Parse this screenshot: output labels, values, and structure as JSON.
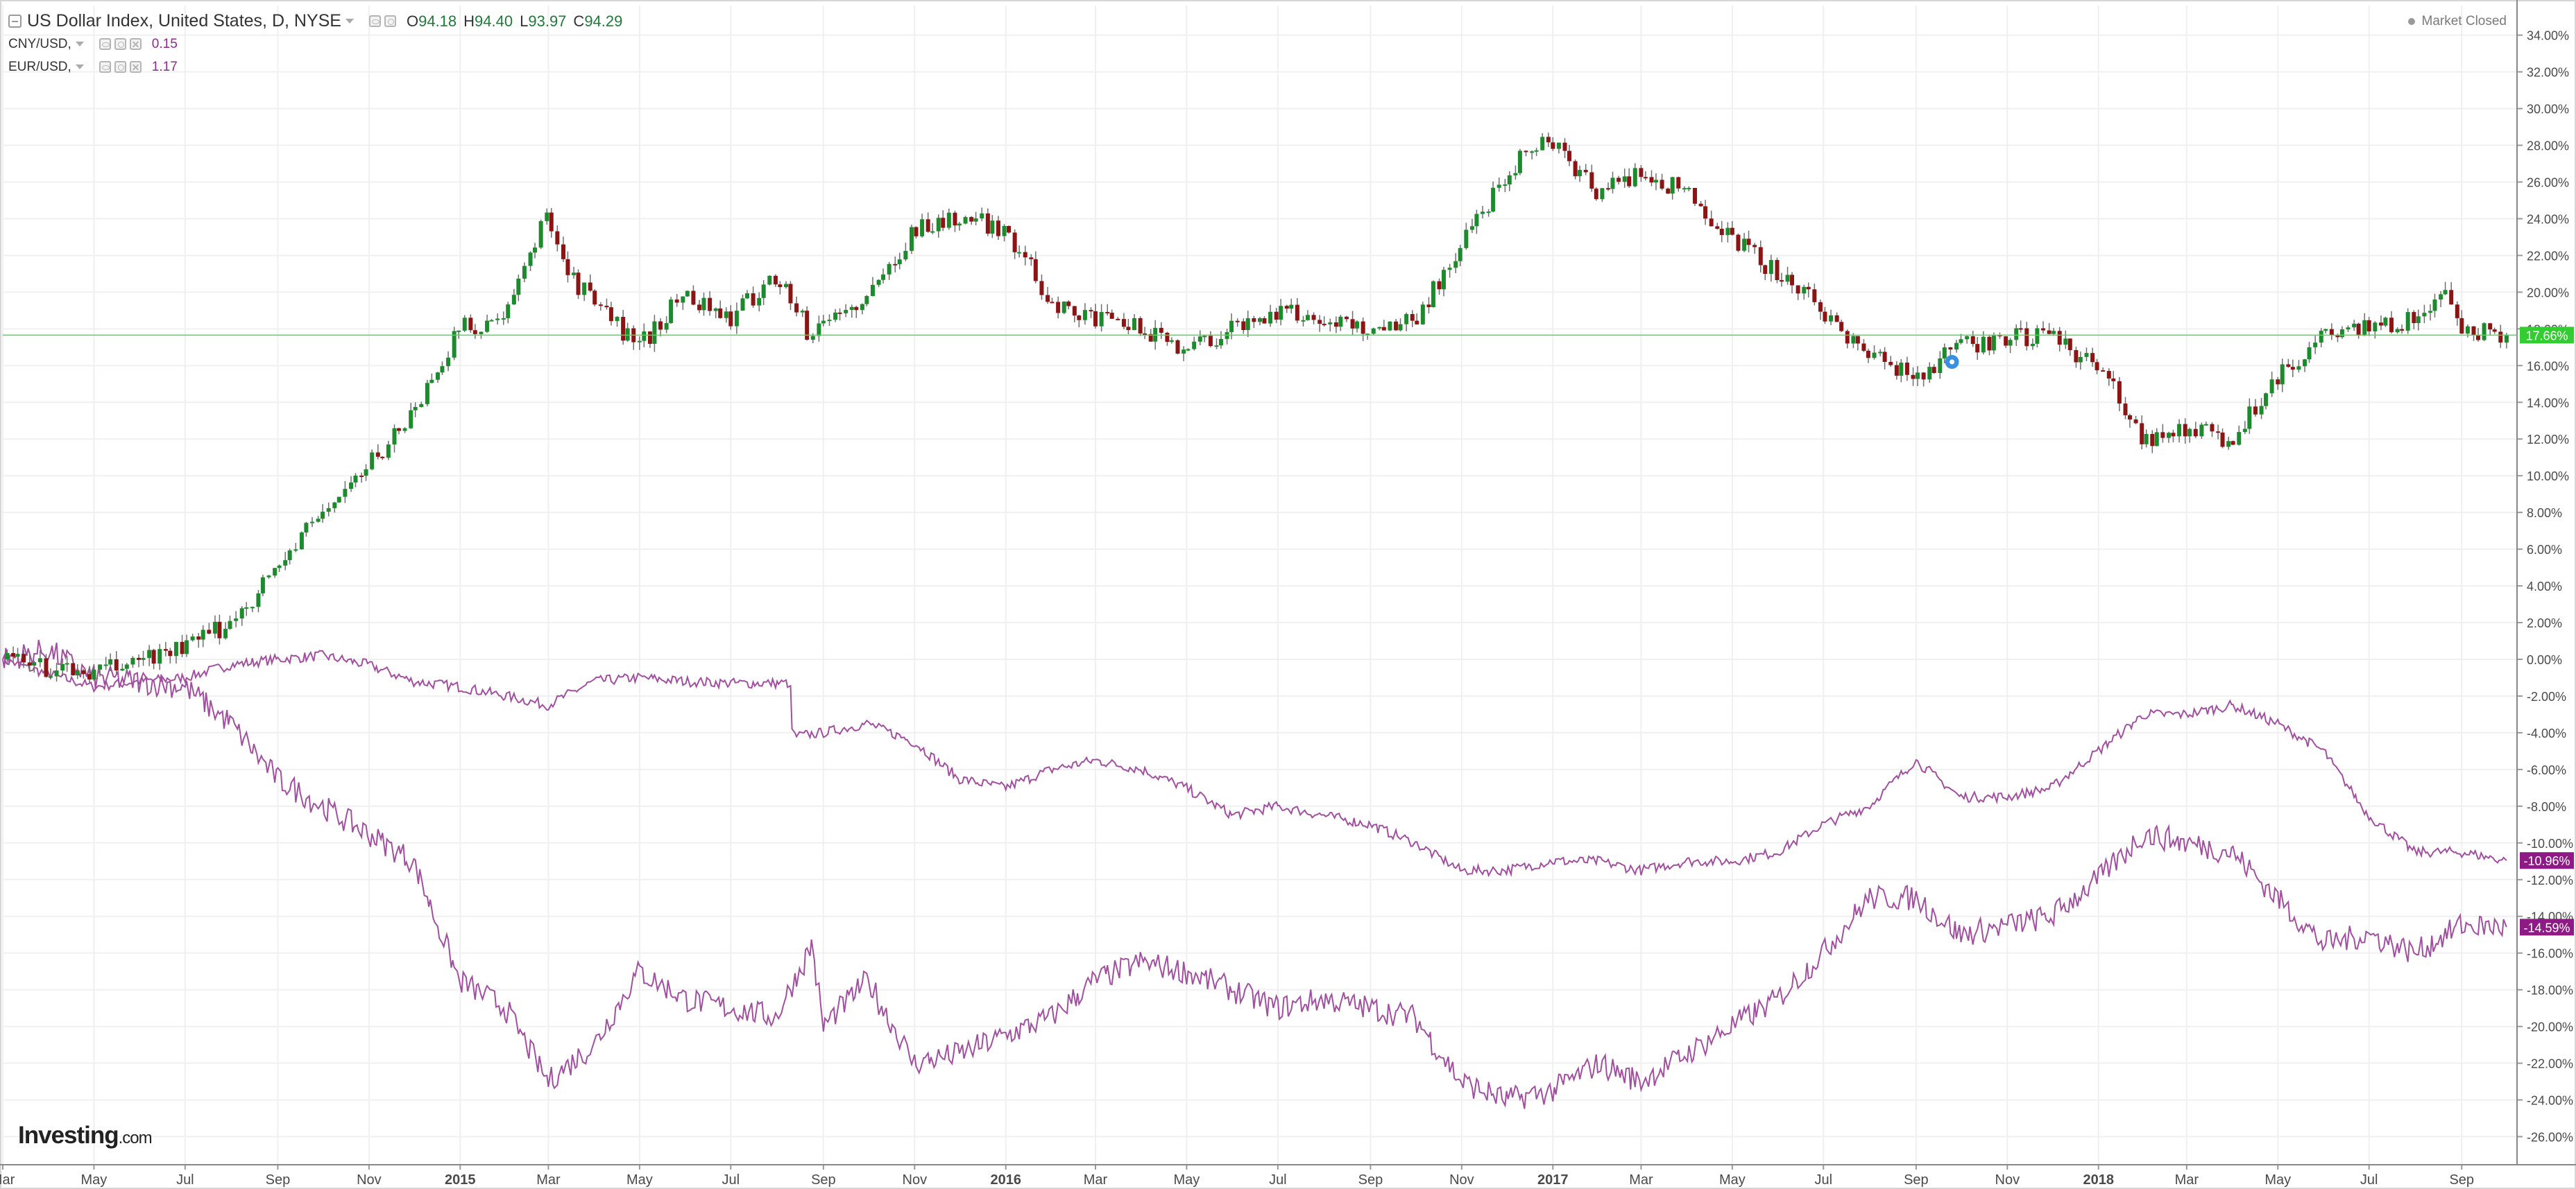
{
  "header": {
    "title": "US Dollar Index, United States, D, NYSE",
    "ohlc": [
      {
        "key": "O",
        "value": "94.18"
      },
      {
        "key": "H",
        "value": "94.40"
      },
      {
        "key": "L",
        "value": "93.97"
      },
      {
        "key": "C",
        "value": "94.29"
      }
    ],
    "series": [
      {
        "label": "CNY/USD,",
        "value": "0.15"
      },
      {
        "label": "EUR/USD,",
        "value": "1.17"
      }
    ],
    "market_status": "Market Closed"
  },
  "branding": {
    "name": "Investing",
    "suffix": ".com"
  },
  "colors": {
    "candle_up": "#1e8a2e",
    "candle_down": "#8b1414",
    "compare_line": "#a0509e",
    "price_line": "#55d555",
    "label_green": "#33cc33",
    "label_purple": "#8e1a85",
    "grid": "#f0f0f0",
    "axis_text": "#4a4a4a"
  },
  "chart_data": {
    "type": "line",
    "y_axis_format": "percent",
    "ylim": [
      -27,
      35
    ],
    "yticks": [
      34,
      32,
      30,
      28,
      26,
      24,
      22,
      20,
      18,
      16,
      14,
      12,
      10,
      8,
      6,
      4,
      2,
      0,
      -2,
      -4,
      -6,
      -8,
      -10,
      -12,
      -14,
      -16,
      -18,
      -20,
      -22,
      -24,
      -26
    ],
    "ytick_labels": [
      "34.00%",
      "32.00%",
      "30.00%",
      "28.00%",
      "26.00%",
      "24.00%",
      "22.00%",
      "20.00%",
      "18.00%",
      "16.00%",
      "14.00%",
      "12.00%",
      "10.00%",
      "8.00%",
      "6.00%",
      "4.00%",
      "2.00%",
      "0.00%",
      "-2.00%",
      "-4.00%",
      "-6.00%",
      "-8.00%",
      "-10.00%",
      "-12.00%",
      "-14.00%",
      "-16.00%",
      "-18.00%",
      "-20.00%",
      "-22.00%",
      "-24.00%",
      "-26.00%"
    ],
    "x_range": [
      "2014-03-01",
      "2018-10-08"
    ],
    "x_ticks": [
      {
        "date": "2014-03-01",
        "label": "Mar",
        "bold": false
      },
      {
        "date": "2014-05-01",
        "label": "May",
        "bold": false
      },
      {
        "date": "2014-07-01",
        "label": "Jul",
        "bold": false
      },
      {
        "date": "2014-09-01",
        "label": "Sep",
        "bold": false
      },
      {
        "date": "2014-11-01",
        "label": "Nov",
        "bold": false
      },
      {
        "date": "2015-01-01",
        "label": "2015",
        "bold": true
      },
      {
        "date": "2015-03-01",
        "label": "Mar",
        "bold": false
      },
      {
        "date": "2015-05-01",
        "label": "May",
        "bold": false
      },
      {
        "date": "2015-07-01",
        "label": "Jul",
        "bold": false
      },
      {
        "date": "2015-09-01",
        "label": "Sep",
        "bold": false
      },
      {
        "date": "2015-11-01",
        "label": "Nov",
        "bold": false
      },
      {
        "date": "2016-01-01",
        "label": "2016",
        "bold": true
      },
      {
        "date": "2016-03-01",
        "label": "Mar",
        "bold": false
      },
      {
        "date": "2016-05-01",
        "label": "May",
        "bold": false
      },
      {
        "date": "2016-07-01",
        "label": "Jul",
        "bold": false
      },
      {
        "date": "2016-09-01",
        "label": "Sep",
        "bold": false
      },
      {
        "date": "2016-11-01",
        "label": "Nov",
        "bold": false
      },
      {
        "date": "2017-01-01",
        "label": "2017",
        "bold": true
      },
      {
        "date": "2017-03-01",
        "label": "Mar",
        "bold": false
      },
      {
        "date": "2017-05-01",
        "label": "May",
        "bold": false
      },
      {
        "date": "2017-07-01",
        "label": "Jul",
        "bold": false
      },
      {
        "date": "2017-09-01",
        "label": "Sep",
        "bold": false
      },
      {
        "date": "2017-11-01",
        "label": "Nov",
        "bold": false
      },
      {
        "date": "2018-01-01",
        "label": "2018",
        "bold": true
      },
      {
        "date": "2018-03-01",
        "label": "Mar",
        "bold": false
      },
      {
        "date": "2018-05-01",
        "label": "May",
        "bold": false
      },
      {
        "date": "2018-07-01",
        "label": "Jul",
        "bold": false
      },
      {
        "date": "2018-09-01",
        "label": "Sep",
        "bold": false
      }
    ],
    "price_line": {
      "value": 17.66,
      "label": "17.66%"
    },
    "last_value_labels": [
      {
        "series": "US Dollar Index",
        "value": 17.66,
        "label": "17.66%"
      },
      {
        "series": "CNY/USD",
        "value": -10.96,
        "label": "-10.96%"
      },
      {
        "series": "EUR/USD",
        "value": -14.59,
        "label": "-14.59%"
      }
    ],
    "series": [
      {
        "name": "US Dollar Index",
        "style": "candlestick",
        "x": [
          "2014-03-01",
          "2014-04-01",
          "2014-05-01",
          "2014-06-01",
          "2014-07-01",
          "2014-08-01",
          "2014-09-01",
          "2014-10-01",
          "2014-11-01",
          "2014-12-01",
          "2015-01-01",
          "2015-02-01",
          "2015-03-01",
          "2015-03-15",
          "2015-04-01",
          "2015-05-01",
          "2015-06-01",
          "2015-07-01",
          "2015-08-01",
          "2015-08-25",
          "2015-09-01",
          "2015-10-01",
          "2015-11-01",
          "2015-12-01",
          "2016-01-01",
          "2016-02-01",
          "2016-03-01",
          "2016-04-01",
          "2016-05-01",
          "2016-06-01",
          "2016-07-01",
          "2016-08-01",
          "2016-09-01",
          "2016-10-01",
          "2016-11-01",
          "2016-12-01",
          "2016-12-25",
          "2017-01-01",
          "2017-02-01",
          "2017-03-01",
          "2017-04-01",
          "2017-05-01",
          "2017-06-01",
          "2017-07-01",
          "2017-08-01",
          "2017-09-01",
          "2017-10-01",
          "2017-11-01",
          "2017-12-01",
          "2018-01-01",
          "2018-02-01",
          "2018-03-01",
          "2018-04-01",
          "2018-05-01",
          "2018-06-01",
          "2018-07-01",
          "2018-08-01",
          "2018-08-20",
          "2018-09-01",
          "2018-10-01"
        ],
        "values": [
          0.0,
          -0.5,
          -0.8,
          0.0,
          0.6,
          2.0,
          5.0,
          8.0,
          10.5,
          13.5,
          18.0,
          18.5,
          24.5,
          21.0,
          19.5,
          17.0,
          20.0,
          18.5,
          21.0,
          17.5,
          18.5,
          19.5,
          23.5,
          24.0,
          23.5,
          19.5,
          18.5,
          18.0,
          17.0,
          18.0,
          19.0,
          18.5,
          18.0,
          18.5,
          22.5,
          26.5,
          28.5,
          28.0,
          25.5,
          26.5,
          25.5,
          23.0,
          21.0,
          19.0,
          16.5,
          15.5,
          17.0,
          17.5,
          17.5,
          16.0,
          12.0,
          12.5,
          12.0,
          15.5,
          17.5,
          18.0,
          18.5,
          20.0,
          18.0,
          17.66
        ]
      },
      {
        "name": "CNY/USD",
        "style": "line",
        "x": [
          "2014-03-01",
          "2014-04-01",
          "2014-05-01",
          "2014-06-01",
          "2014-07-01",
          "2014-08-01",
          "2014-09-01",
          "2014-10-01",
          "2014-11-01",
          "2014-12-01",
          "2015-01-01",
          "2015-02-01",
          "2015-03-01",
          "2015-04-01",
          "2015-05-01",
          "2015-06-01",
          "2015-07-01",
          "2015-08-01",
          "2015-08-10",
          "2015-08-12",
          "2015-09-01",
          "2015-10-01",
          "2015-11-01",
          "2015-12-01",
          "2016-01-01",
          "2016-02-01",
          "2016-03-01",
          "2016-04-01",
          "2016-05-01",
          "2016-06-01",
          "2016-07-01",
          "2016-08-01",
          "2016-09-01",
          "2016-10-01",
          "2016-11-01",
          "2016-12-01",
          "2017-01-01",
          "2017-02-01",
          "2017-03-01",
          "2017-04-01",
          "2017-05-01",
          "2017-06-01",
          "2017-07-01",
          "2017-08-01",
          "2017-09-01",
          "2017-10-01",
          "2017-11-01",
          "2017-12-01",
          "2018-01-01",
          "2018-02-01",
          "2018-03-01",
          "2018-04-01",
          "2018-05-01",
          "2018-06-01",
          "2018-07-01",
          "2018-08-01",
          "2018-09-01",
          "2018-10-01"
        ],
        "values": [
          0.0,
          -0.8,
          -1.5,
          -1.2,
          -1.0,
          -0.3,
          0.0,
          0.2,
          -0.3,
          -1.2,
          -1.5,
          -2.0,
          -2.5,
          -1.2,
          -1.0,
          -1.2,
          -1.3,
          -1.3,
          -1.3,
          -4.2,
          -4.0,
          -3.5,
          -4.5,
          -6.5,
          -7.0,
          -6.0,
          -5.5,
          -6.0,
          -7.0,
          -8.5,
          -8.0,
          -8.5,
          -9.0,
          -10.0,
          -11.5,
          -11.5,
          -11.0,
          -11.0,
          -11.5,
          -11.0,
          -11.0,
          -10.5,
          -9.0,
          -8.0,
          -5.5,
          -7.5,
          -7.5,
          -7.0,
          -5.0,
          -3.0,
          -3.0,
          -2.5,
          -3.5,
          -5.0,
          -8.5,
          -10.5,
          -10.5,
          -10.96
        ]
      },
      {
        "name": "EUR/USD",
        "style": "line",
        "x": [
          "2014-03-01",
          "2014-04-01",
          "2014-05-01",
          "2014-06-01",
          "2014-07-01",
          "2014-08-01",
          "2014-09-01",
          "2014-10-01",
          "2014-11-01",
          "2014-12-01",
          "2015-01-01",
          "2015-02-01",
          "2015-03-01",
          "2015-04-01",
          "2015-05-01",
          "2015-06-01",
          "2015-07-01",
          "2015-08-01",
          "2015-08-25",
          "2015-09-01",
          "2015-10-01",
          "2015-11-01",
          "2015-12-01",
          "2016-01-01",
          "2016-02-01",
          "2016-03-01",
          "2016-04-01",
          "2016-05-01",
          "2016-06-01",
          "2016-07-01",
          "2016-08-01",
          "2016-09-01",
          "2016-10-01",
          "2016-11-01",
          "2016-12-01",
          "2017-01-01",
          "2017-02-01",
          "2017-03-01",
          "2017-04-01",
          "2017-05-01",
          "2017-06-01",
          "2017-07-01",
          "2017-08-01",
          "2017-09-01",
          "2017-10-01",
          "2017-11-01",
          "2017-12-01",
          "2018-01-01",
          "2018-02-01",
          "2018-03-01",
          "2018-04-01",
          "2018-05-01",
          "2018-06-01",
          "2018-07-01",
          "2018-08-01",
          "2018-09-01",
          "2018-10-01"
        ],
        "values": [
          0.0,
          0.5,
          -1.0,
          -1.2,
          -1.5,
          -3.5,
          -6.5,
          -8.0,
          -9.5,
          -11.0,
          -17.5,
          -19.0,
          -23.0,
          -21.0,
          -17.0,
          -18.5,
          -19.0,
          -19.5,
          -15.5,
          -20.0,
          -17.5,
          -22.0,
          -21.5,
          -20.5,
          -19.5,
          -17.5,
          -16.5,
          -17.0,
          -18.0,
          -19.0,
          -18.5,
          -19.0,
          -19.5,
          -23.0,
          -24.0,
          -23.5,
          -22.0,
          -23.0,
          -21.5,
          -20.0,
          -18.5,
          -16.0,
          -13.0,
          -13.0,
          -15.0,
          -14.5,
          -14.0,
          -12.0,
          -9.5,
          -10.0,
          -10.5,
          -13.0,
          -15.5,
          -15.0,
          -16.0,
          -14.5,
          -14.59
        ]
      }
    ]
  }
}
